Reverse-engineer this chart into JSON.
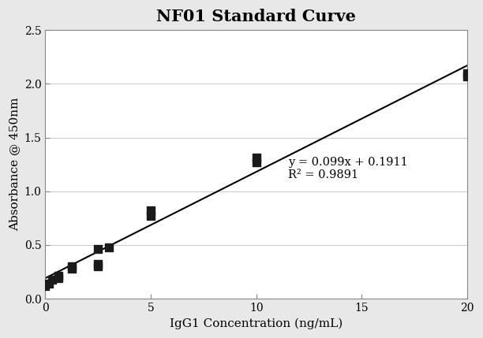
{
  "title": "NF01 Standard Curve",
  "xlabel": "IgG1 Concentration (ng/mL)",
  "ylabel": "Absorbance @ 450nm",
  "xlim": [
    0,
    20
  ],
  "ylim": [
    0.0,
    2.5
  ],
  "xticks": [
    0,
    5,
    10,
    15,
    20
  ],
  "yticks": [
    0.0,
    0.5,
    1.0,
    1.5,
    2.0,
    2.5
  ],
  "data_x": [
    0.0,
    0.156,
    0.313,
    0.625,
    0.625,
    1.25,
    1.25,
    2.5,
    2.5,
    2.5,
    3.0,
    5.0,
    5.0,
    10.0,
    10.0,
    20.0,
    20.0
  ],
  "data_y": [
    0.12,
    0.14,
    0.18,
    0.19,
    0.21,
    0.28,
    0.3,
    0.3,
    0.32,
    0.46,
    0.48,
    0.77,
    0.82,
    1.27,
    1.31,
    2.07,
    2.1
  ],
  "slope": 0.099,
  "intercept": 0.1911,
  "r_squared": 0.9891,
  "equation_x": 11.5,
  "equation_y": 1.32,
  "line_color": "#000000",
  "marker_color": "#1a1a1a",
  "background_color": "#ffffff",
  "outer_background": "#e8e8e8",
  "grid_color": "#cccccc",
  "spine_color": "#888888",
  "title_fontsize": 15,
  "label_fontsize": 11,
  "tick_fontsize": 10,
  "annotation_fontsize": 10.5
}
